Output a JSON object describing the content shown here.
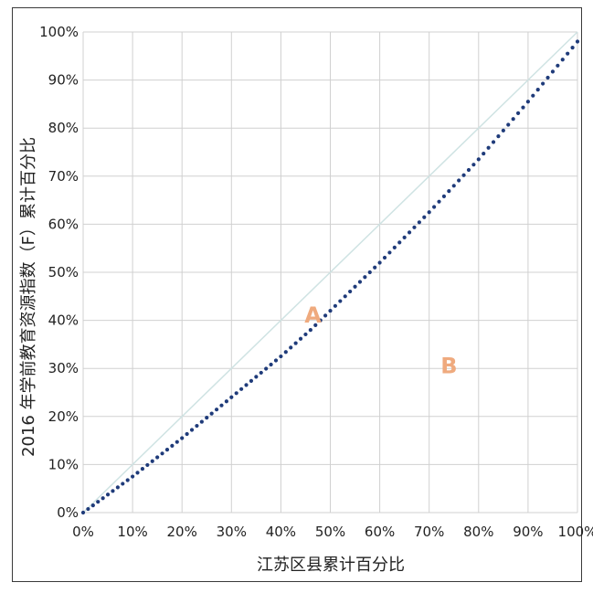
{
  "chart_data": {
    "type": "line",
    "title": "",
    "xlabel": "江苏区县累计百分比",
    "ylabel": "2016 年学前教育资源指数（F）累计百分比",
    "xlim": [
      0,
      100
    ],
    "ylim": [
      0,
      100
    ],
    "grid": true,
    "x_ticks": [
      "0%",
      "10%",
      "20%",
      "30%",
      "40%",
      "50%",
      "60%",
      "70%",
      "80%",
      "90%",
      "100%"
    ],
    "y_ticks": [
      "0%",
      "10%",
      "20%",
      "30%",
      "40%",
      "50%",
      "60%",
      "70%",
      "80%",
      "90%",
      "100%"
    ],
    "series": [
      {
        "kind": "equality-line",
        "color": "#cfe3e3",
        "points": [
          [
            0,
            0
          ],
          [
            100,
            100
          ]
        ]
      },
      {
        "kind": "lorenz-curve",
        "color": "#1f3b7a",
        "marker": "dots",
        "x": [
          0,
          10,
          20,
          30,
          40,
          46,
          50,
          60,
          70,
          80,
          90,
          100
        ],
        "y": [
          0,
          7.5,
          15.5,
          24,
          32.5,
          38,
          42,
          52,
          62.5,
          73.5,
          85.5,
          98
        ]
      }
    ],
    "annotations": [
      {
        "text": "A",
        "x": 46.5,
        "y": 39.5
      },
      {
        "text": "B",
        "x": 74,
        "y": 29
      }
    ],
    "colors": {
      "gridline": "#d0d0d0",
      "annotation": "#efaa7e"
    }
  }
}
